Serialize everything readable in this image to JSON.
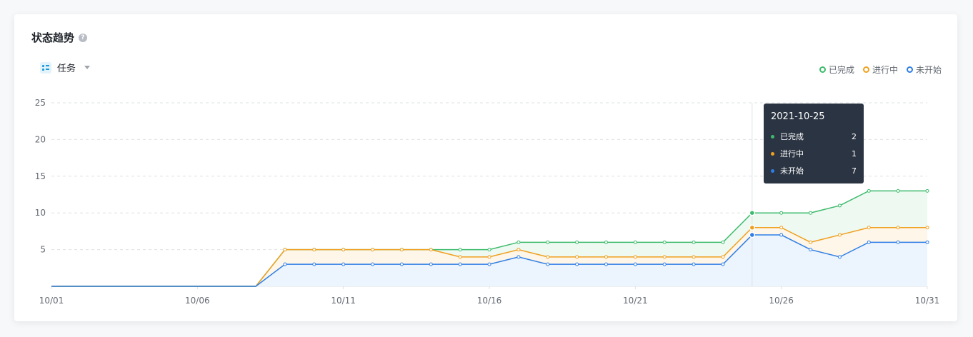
{
  "header": {
    "title": "状态趋势"
  },
  "selector": {
    "label": "任务"
  },
  "legend": [
    {
      "name": "已完成",
      "color": "#3dbb6c"
    },
    {
      "name": "进行中",
      "color": "#f0a020"
    },
    {
      "name": "未开始",
      "color": "#2f7ee6"
    }
  ],
  "tooltip": {
    "date": "2021-10-25",
    "rows": [
      {
        "label": "已完成",
        "value": "2",
        "color": "#3dbb6c"
      },
      {
        "label": "进行中",
        "value": "1",
        "color": "#f0a020"
      },
      {
        "label": "未开始",
        "value": "7",
        "color": "#2f7ee6"
      }
    ]
  },
  "chart_data": {
    "type": "area",
    "x": [
      "10/01",
      "10/02",
      "10/03",
      "10/04",
      "10/05",
      "10/06",
      "10/07",
      "10/08",
      "10/09",
      "10/10",
      "10/11",
      "10/12",
      "10/13",
      "10/14",
      "10/15",
      "10/16",
      "10/17",
      "10/18",
      "10/19",
      "10/20",
      "10/21",
      "10/22",
      "10/23",
      "10/24",
      "10/25",
      "10/26",
      "10/27",
      "10/28",
      "10/29",
      "10/30",
      "10/31"
    ],
    "x_tick_labels": [
      "10/01",
      "10/06",
      "10/11",
      "10/16",
      "10/21",
      "10/26",
      "10/31"
    ],
    "ylim": [
      0,
      25
    ],
    "y_ticks": [
      5,
      10,
      15,
      20,
      25
    ],
    "grid": true,
    "stacked": true,
    "series": [
      {
        "name": "已完成",
        "cumulative": [
          0,
          0,
          0,
          0,
          0,
          0,
          0,
          0,
          5,
          5,
          5,
          5,
          5,
          5,
          5,
          5,
          6,
          6,
          6,
          6,
          6,
          6,
          6,
          6,
          10,
          10,
          10,
          11,
          13,
          13,
          13
        ]
      },
      {
        "name": "进行中",
        "cumulative": [
          0,
          0,
          0,
          0,
          0,
          0,
          0,
          0,
          5,
          5,
          5,
          5,
          5,
          5,
          4,
          4,
          5,
          4,
          4,
          4,
          4,
          4,
          4,
          4,
          8,
          8,
          6,
          7,
          8,
          8,
          8
        ]
      },
      {
        "name": "未开始",
        "cumulative": [
          0,
          0,
          0,
          0,
          0,
          0,
          0,
          0,
          3,
          3,
          3,
          3,
          3,
          3,
          3,
          3,
          4,
          3,
          3,
          3,
          3,
          3,
          3,
          3,
          7,
          7,
          5,
          4,
          6,
          6,
          6
        ]
      }
    ],
    "hover_index": 24
  }
}
